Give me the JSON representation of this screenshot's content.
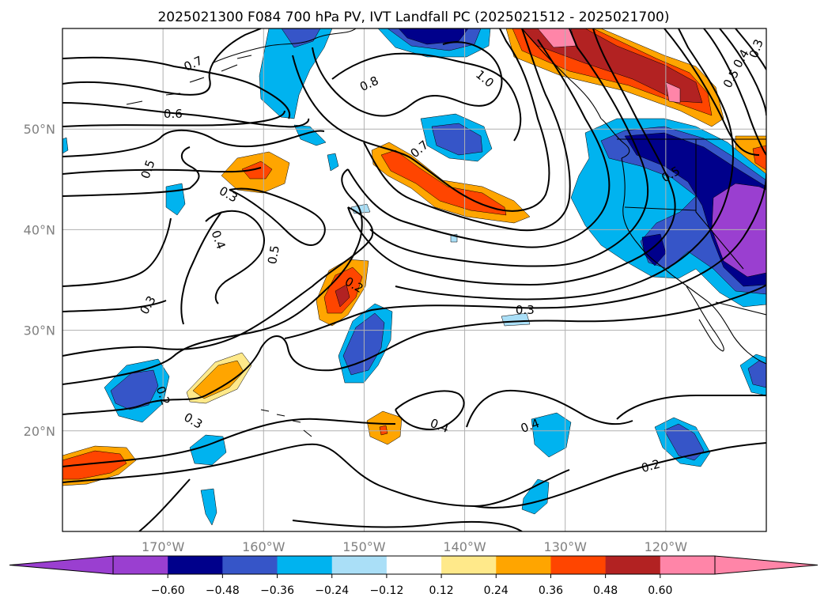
{
  "title": "2025021300 F084 700 hPa PV, IVT Landfall PC (2025021512 - 2025021700)",
  "map": {
    "lon_range": [
      -180,
      -110
    ],
    "lat_range": [
      10,
      60
    ],
    "lon_ticks": [
      {
        "value": -170,
        "label": "170°W"
      },
      {
        "value": -160,
        "label": "160°W"
      },
      {
        "value": -150,
        "label": "150°W"
      },
      {
        "value": -140,
        "label": "140°W"
      },
      {
        "value": -130,
        "label": "130°W"
      },
      {
        "value": -120,
        "label": "120°W"
      }
    ],
    "lat_ticks": [
      {
        "value": 20,
        "label": "20°N"
      },
      {
        "value": 30,
        "label": "30°N"
      },
      {
        "value": 40,
        "label": "40°N"
      },
      {
        "value": 50,
        "label": "50°N"
      }
    ]
  },
  "colorbar": {
    "colors": [
      "#9a3fd0",
      "#00008b",
      "#3655c8",
      "#00b3ef",
      "#aadff7",
      "#ffffff",
      "#ffe98a",
      "#ffa500",
      "#ff4500",
      "#b22222",
      "#ff85a8"
    ],
    "under_color": "#9a3fd0",
    "over_color": "#ff85a8",
    "labels": [
      "−0.60",
      "−0.48",
      "−0.36",
      "−0.24",
      "−0.12",
      "0.12",
      "0.24",
      "0.36",
      "0.48",
      "0.60"
    ]
  },
  "contour_labels": [
    {
      "text": "0.7",
      "lon": -167,
      "lat": 56.5,
      "angle": 25
    },
    {
      "text": "0.6",
      "lon": -169,
      "lat": 51.5,
      "angle": 0
    },
    {
      "text": "0.5",
      "lon": -171.5,
      "lat": 46,
      "angle": 70
    },
    {
      "text": "0.3",
      "lon": -163.5,
      "lat": 43.5,
      "angle": -30
    },
    {
      "text": "0.4",
      "lon": -164.5,
      "lat": 39,
      "angle": -70
    },
    {
      "text": "0.5",
      "lon": -159,
      "lat": 37.5,
      "angle": 80
    },
    {
      "text": "0.3",
      "lon": -171.5,
      "lat": 32.5,
      "angle": 60
    },
    {
      "text": "0.2",
      "lon": -151,
      "lat": 34.5,
      "angle": -30
    },
    {
      "text": "0.8",
      "lon": -149.5,
      "lat": 54.5,
      "angle": 25
    },
    {
      "text": "1.0",
      "lon": -138,
      "lat": 55,
      "angle": -40
    },
    {
      "text": "0.7",
      "lon": -144.5,
      "lat": 48,
      "angle": 40
    },
    {
      "text": "0.5",
      "lon": -119.5,
      "lat": 45.5,
      "angle": 30
    },
    {
      "text": "0.4",
      "lon": -112.5,
      "lat": 57,
      "angle": 60
    },
    {
      "text": "0.5",
      "lon": -113.5,
      "lat": 55,
      "angle": 60
    },
    {
      "text": "0.3",
      "lon": -111,
      "lat": 58,
      "angle": 70
    },
    {
      "text": "0.3",
      "lon": -134,
      "lat": 32,
      "angle": 0
    },
    {
      "text": "0.2",
      "lon": -170,
      "lat": 23.5,
      "angle": -70
    },
    {
      "text": "0.3",
      "lon": -167,
      "lat": 21,
      "angle": -30
    },
    {
      "text": "0.4",
      "lon": -142.5,
      "lat": 20.5,
      "angle": -20
    },
    {
      "text": "0.4",
      "lon": -133.5,
      "lat": 20.5,
      "angle": 20
    },
    {
      "text": "0.2",
      "lon": -121.5,
      "lat": 16.5,
      "angle": 15
    }
  ]
}
